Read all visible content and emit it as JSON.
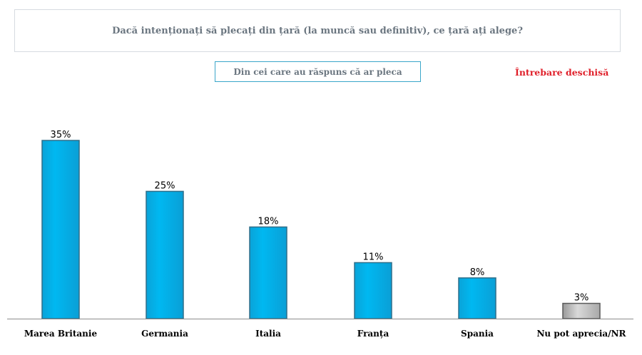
{
  "header": {
    "question": "Dacă intenționați să plecați din țară (la muncă sau definitiv), ce țară ați alege?",
    "subtitle": "Din cei care au răspuns că ar pleca",
    "note": "Întrebare deschisă"
  },
  "chart_data": {
    "type": "bar",
    "categories": [
      "Marea Britanie",
      "Germania",
      "Italia",
      "Franța",
      "Spania",
      "Nu pot aprecia/NR"
    ],
    "values": [
      35,
      25,
      18,
      11,
      8,
      3
    ],
    "value_labels": [
      "35%",
      "25%",
      "18%",
      "11%",
      "8%",
      "3%"
    ],
    "ylim": [
      0,
      35
    ],
    "grid": false,
    "legend": "none",
    "colors": {
      "bar": "#00b8f1",
      "bar_border": "#2f6f8a",
      "bar_nr": "#bdbdbd",
      "bar_nr_border": "#5a5a5a",
      "axis": "#8c8c8c"
    }
  }
}
